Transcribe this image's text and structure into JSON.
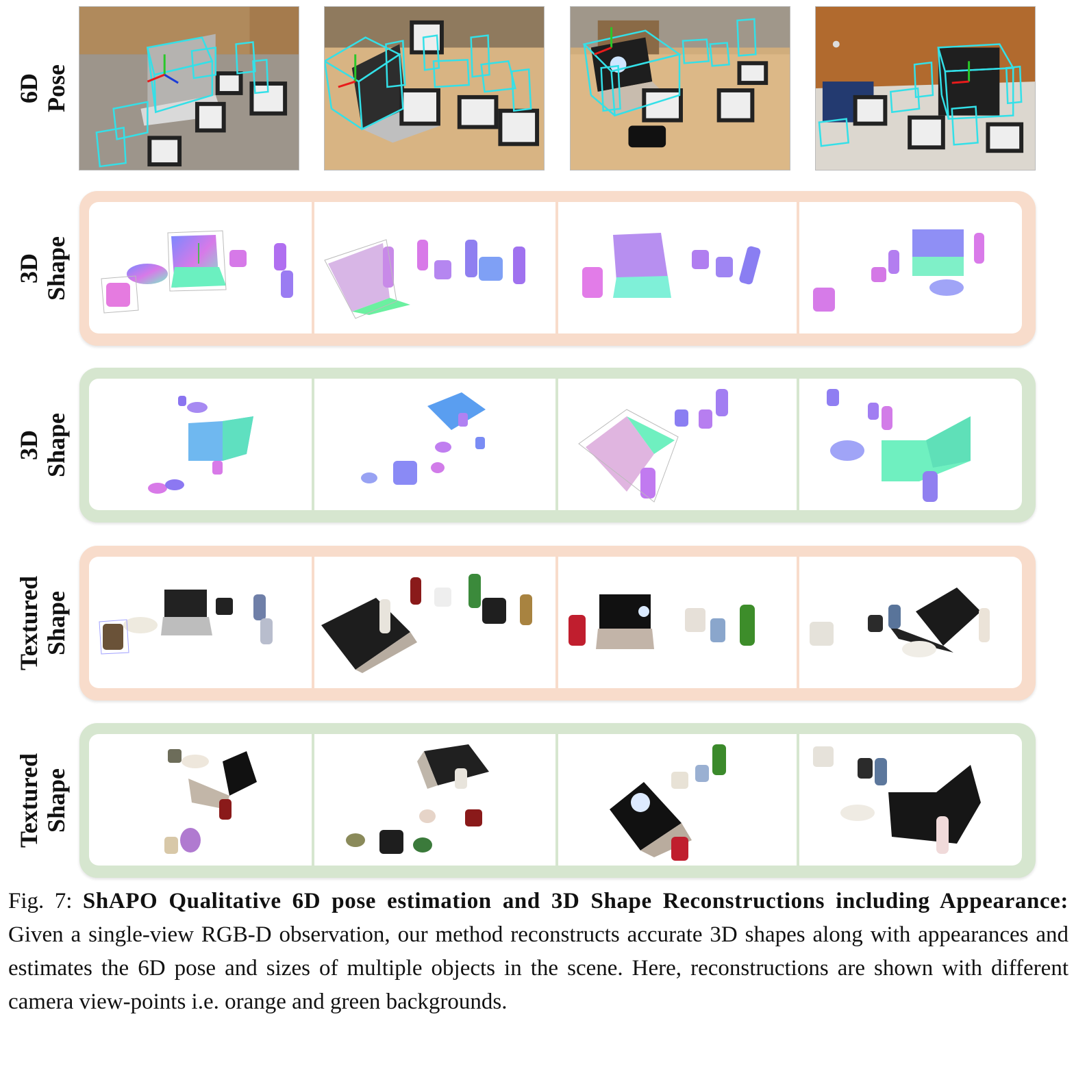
{
  "rows": [
    {
      "label_line1": "6D",
      "label_line2": "Pose"
    },
    {
      "label_line1": "3D",
      "label_line2": "Shape"
    },
    {
      "label_line1": "3D",
      "label_line2": "Shape"
    },
    {
      "label_line1": "Textured",
      "label_line2": "Shape"
    },
    {
      "label_line1": "Textured",
      "label_line2": "Shape"
    }
  ],
  "panel_backgrounds": [
    "orange",
    "green",
    "orange",
    "green"
  ],
  "colors": {
    "orange_bg": "#f8dccb",
    "green_bg": "#d6e6cf",
    "pose_box": "#33e0e8",
    "axis_x": "#e81b1b",
    "axis_y": "#29c829",
    "axis_z": "#1a3bd8"
  },
  "caption": {
    "figure_label": "Fig. 7:",
    "bold_title": "ShAPO Qualitative 6D pose estimation and 3D Shape Reconstructions including Appearance:",
    "body": "Given a single-view RGB-D observation, our method reconstructs accurate 3D shapes along with appearances and estimates the 6D pose and sizes of multiple objects in the scene. Here, reconstructions are shown with different camera view-points i.e. orange and green backgrounds."
  }
}
